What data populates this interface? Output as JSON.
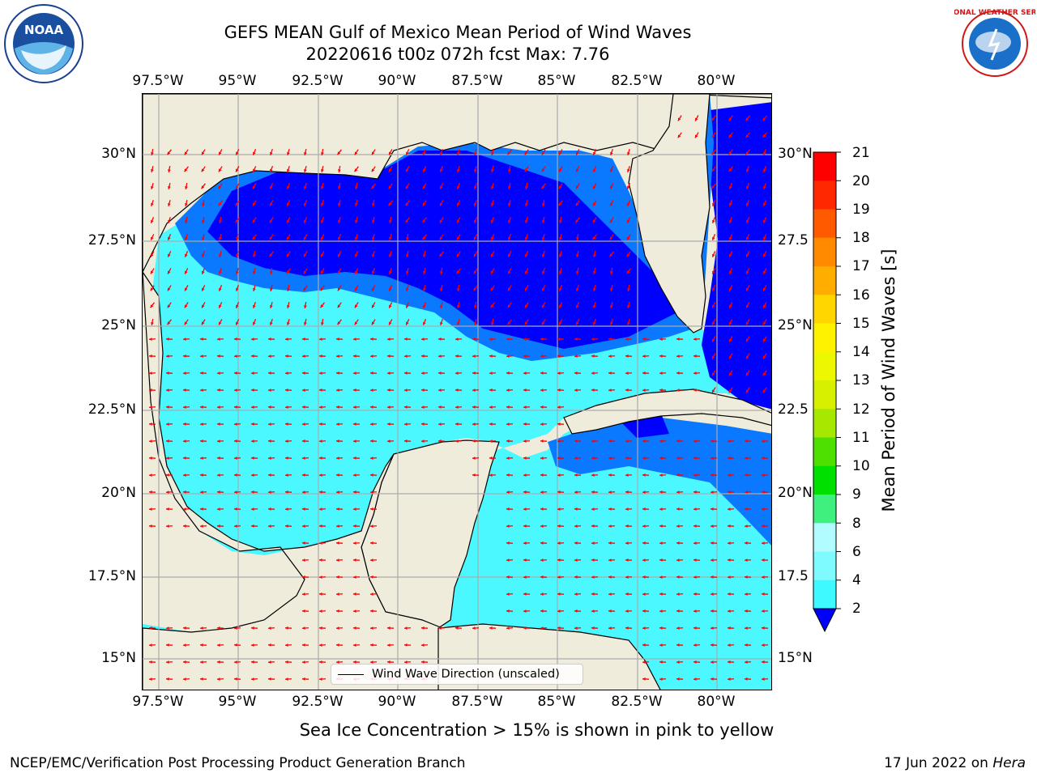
{
  "header": {
    "title_line1": "GEFS MEAN Gulf of Mexico Mean Period of Wind Waves",
    "title_line2": "20220616 t00z 072h fcst   Max: 7.76"
  },
  "axes": {
    "lon_labels": [
      "97.5°W",
      "95°W",
      "92.5°W",
      "90°W",
      "87.5°W",
      "85°W",
      "82.5°W",
      "80°W"
    ],
    "lat_labels_left": [
      "30°N",
      "27.5°N",
      "25°N",
      "22.5°N",
      "20°N",
      "17.5°N",
      "15°N"
    ],
    "lat_labels_right": [
      "30°N",
      "27.5",
      "25°N",
      "22.5",
      "20°N",
      "17.5",
      "15°N"
    ]
  },
  "map_legend": {
    "label": "Wind Wave Direction (unscaled)"
  },
  "colorbar": {
    "title": "Mean Period of Wind Waves [s]",
    "tick_labels": [
      "2",
      "4",
      "6",
      "8",
      "9",
      "10",
      "11",
      "12",
      "13",
      "14",
      "15",
      "16",
      "17",
      "18",
      "19",
      "20",
      "21"
    ],
    "colors": [
      "#0a50ff",
      "#00e5ff",
      "#3cfaff",
      "#7efbff",
      "#b0fcff",
      "#3ff07f",
      "#00e000",
      "#4ee000",
      "#a6e800",
      "#d7f000",
      "#ecf700",
      "#fff200",
      "#ffd600",
      "#ffae00",
      "#ff8a00",
      "#ff5a00",
      "#ff2800",
      "#ff0000"
    ],
    "extend_color": "#0000ff"
  },
  "map_colors": {
    "land": "#efecdc",
    "level_0_2": "#0000ff",
    "level_2_4": "#0a78ff",
    "level_4_6": "#00f0ff",
    "level_6_8": "#4cf8ff",
    "level_8_9": "#8efcff",
    "arrow": "#ff0000"
  },
  "footer": {
    "caption": "Sea Ice Concentration > 15% is shown in pink to yellow",
    "credit": "NCEP/EMC/Verification Post Processing Product Generation Branch",
    "date": "17 Jun 2022 on",
    "host": "Hera"
  },
  "logos": {
    "noaa_text": "NOAA",
    "nws_text": "NATIONAL WEATHER SERVICE"
  }
}
